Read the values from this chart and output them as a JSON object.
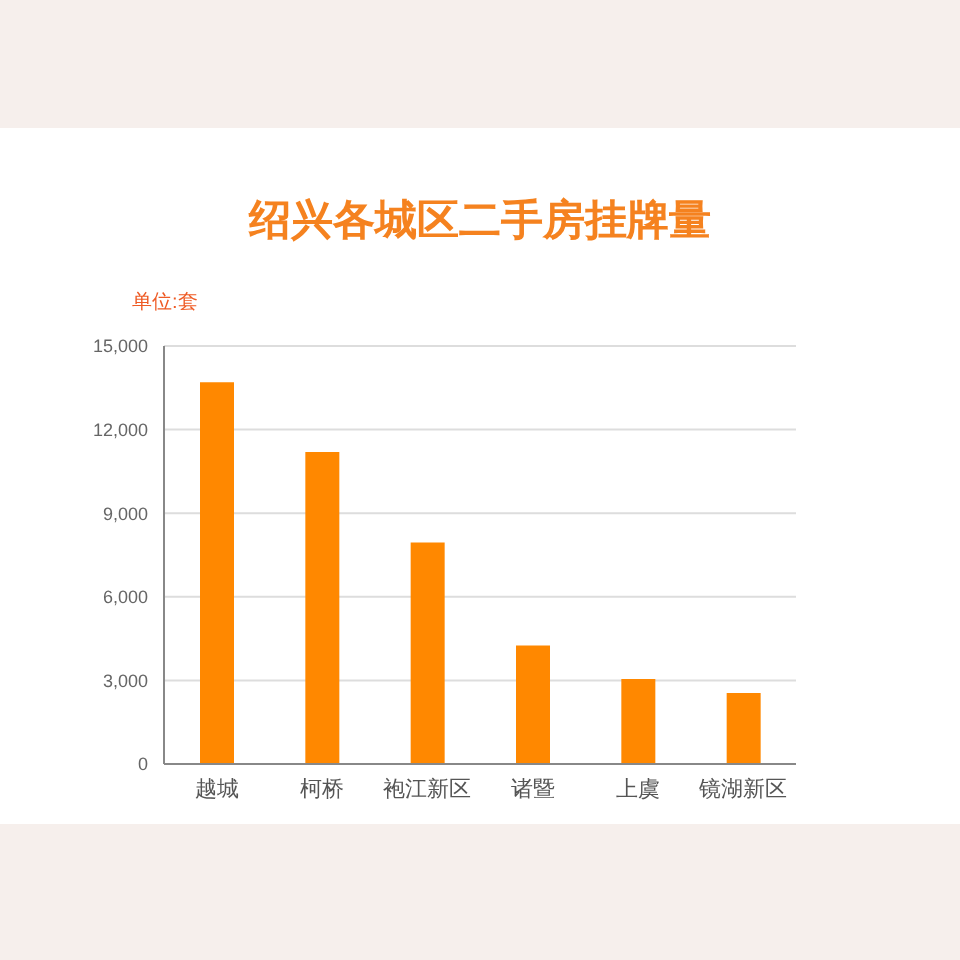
{
  "chart_data": {
    "type": "bar",
    "title": "绍兴各城区二手房挂牌量",
    "ylabel": "单位:套",
    "categories": [
      "越城",
      "柯桥",
      "袍江新区",
      "诸暨",
      "上虞",
      "镜湖新区"
    ],
    "values": [
      13700,
      11200,
      7950,
      4250,
      3050,
      2550
    ],
    "color": "#ff8800",
    "ylim": [
      0,
      15000
    ],
    "yticks": [
      0,
      {
        "value": 3000,
        "label": "3,000"
      },
      {
        "value": 6000,
        "label": "6,000"
      },
      {
        "value": 9000,
        "label": "9,000"
      },
      {
        "value": 12000,
        "label": "12,000"
      },
      {
        "value": 15000,
        "label": "15,000"
      }
    ],
    "grid": "y"
  }
}
